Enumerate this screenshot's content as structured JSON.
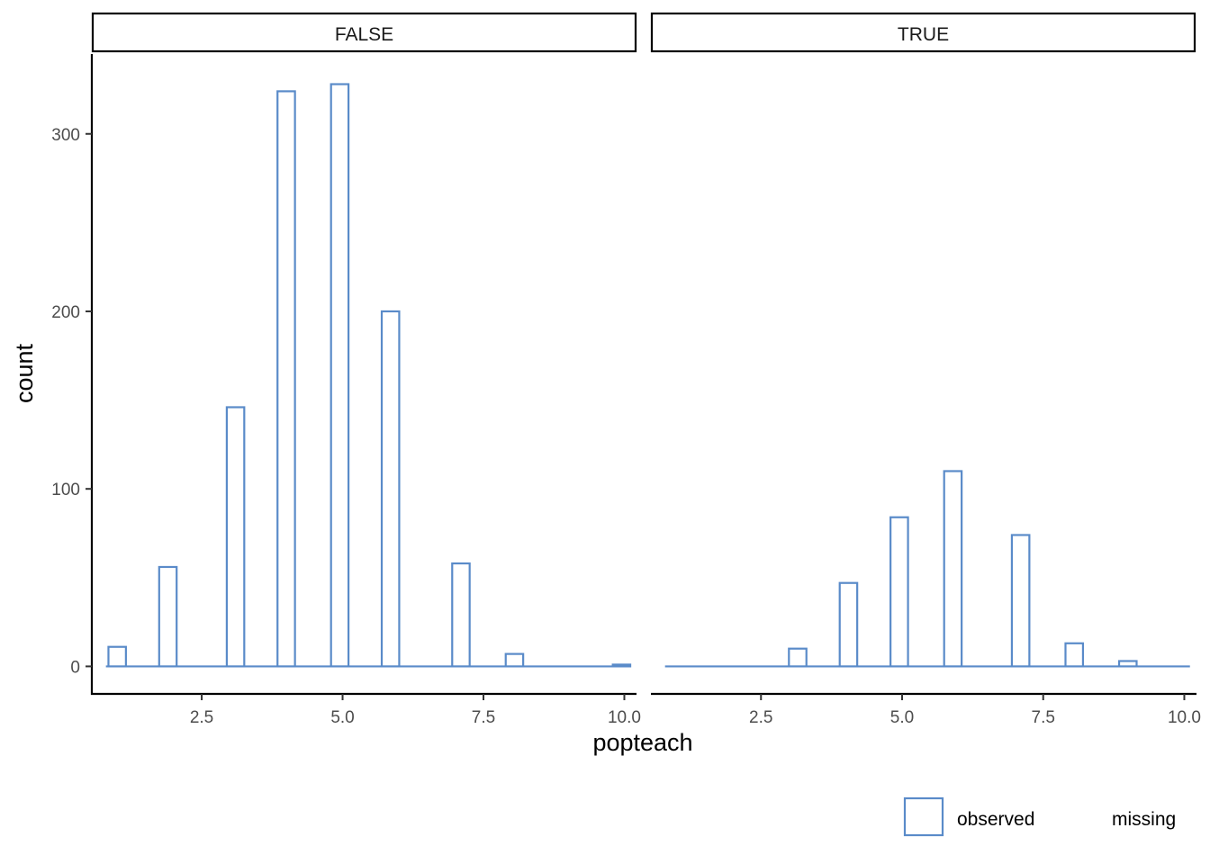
{
  "chart_data": {
    "type": "bar",
    "xlabel": "popteach",
    "ylabel": "count",
    "xlim": [
      0.55,
      10.2
    ],
    "ylim": [
      -15,
      345
    ],
    "x_ticks": [
      2.5,
      5.0,
      7.5,
      10.0
    ],
    "x_tick_labels": [
      "2.5",
      "5.0",
      "7.5",
      "10.0"
    ],
    "y_ticks": [
      0,
      100,
      200,
      300
    ],
    "y_tick_labels": [
      "0",
      "100",
      "200",
      "300"
    ],
    "bin_range": [
      0.8,
      10.1
    ],
    "bin_width": 0.31,
    "grid": false,
    "outline_color": "#5A8BC9",
    "panels": [
      {
        "strip_label": "FALSE",
        "bars": [
          {
            "x": 1.0,
            "count": 11
          },
          {
            "x": 1.9,
            "count": 56
          },
          {
            "x": 3.1,
            "count": 146
          },
          {
            "x": 4.0,
            "count": 324
          },
          {
            "x": 4.95,
            "count": 328
          },
          {
            "x": 5.85,
            "count": 200
          },
          {
            "x": 7.1,
            "count": 58
          },
          {
            "x": 8.05,
            "count": 7
          },
          {
            "x": 9.95,
            "count": 1
          }
        ]
      },
      {
        "strip_label": "TRUE",
        "bars": [
          {
            "x": 3.15,
            "count": 10
          },
          {
            "x": 4.05,
            "count": 47
          },
          {
            "x": 4.95,
            "count": 84
          },
          {
            "x": 5.9,
            "count": 110
          },
          {
            "x": 7.1,
            "count": 74
          },
          {
            "x": 8.05,
            "count": 13
          },
          {
            "x": 9.0,
            "count": 3
          }
        ]
      }
    ],
    "legend": {
      "position": "bottom-right",
      "entries": [
        {
          "label": "observed",
          "fill": "#ffffff",
          "stroke": "#5A8BC9"
        },
        {
          "label": "missing",
          "fill": "#ffffff",
          "stroke": "none"
        }
      ]
    }
  }
}
